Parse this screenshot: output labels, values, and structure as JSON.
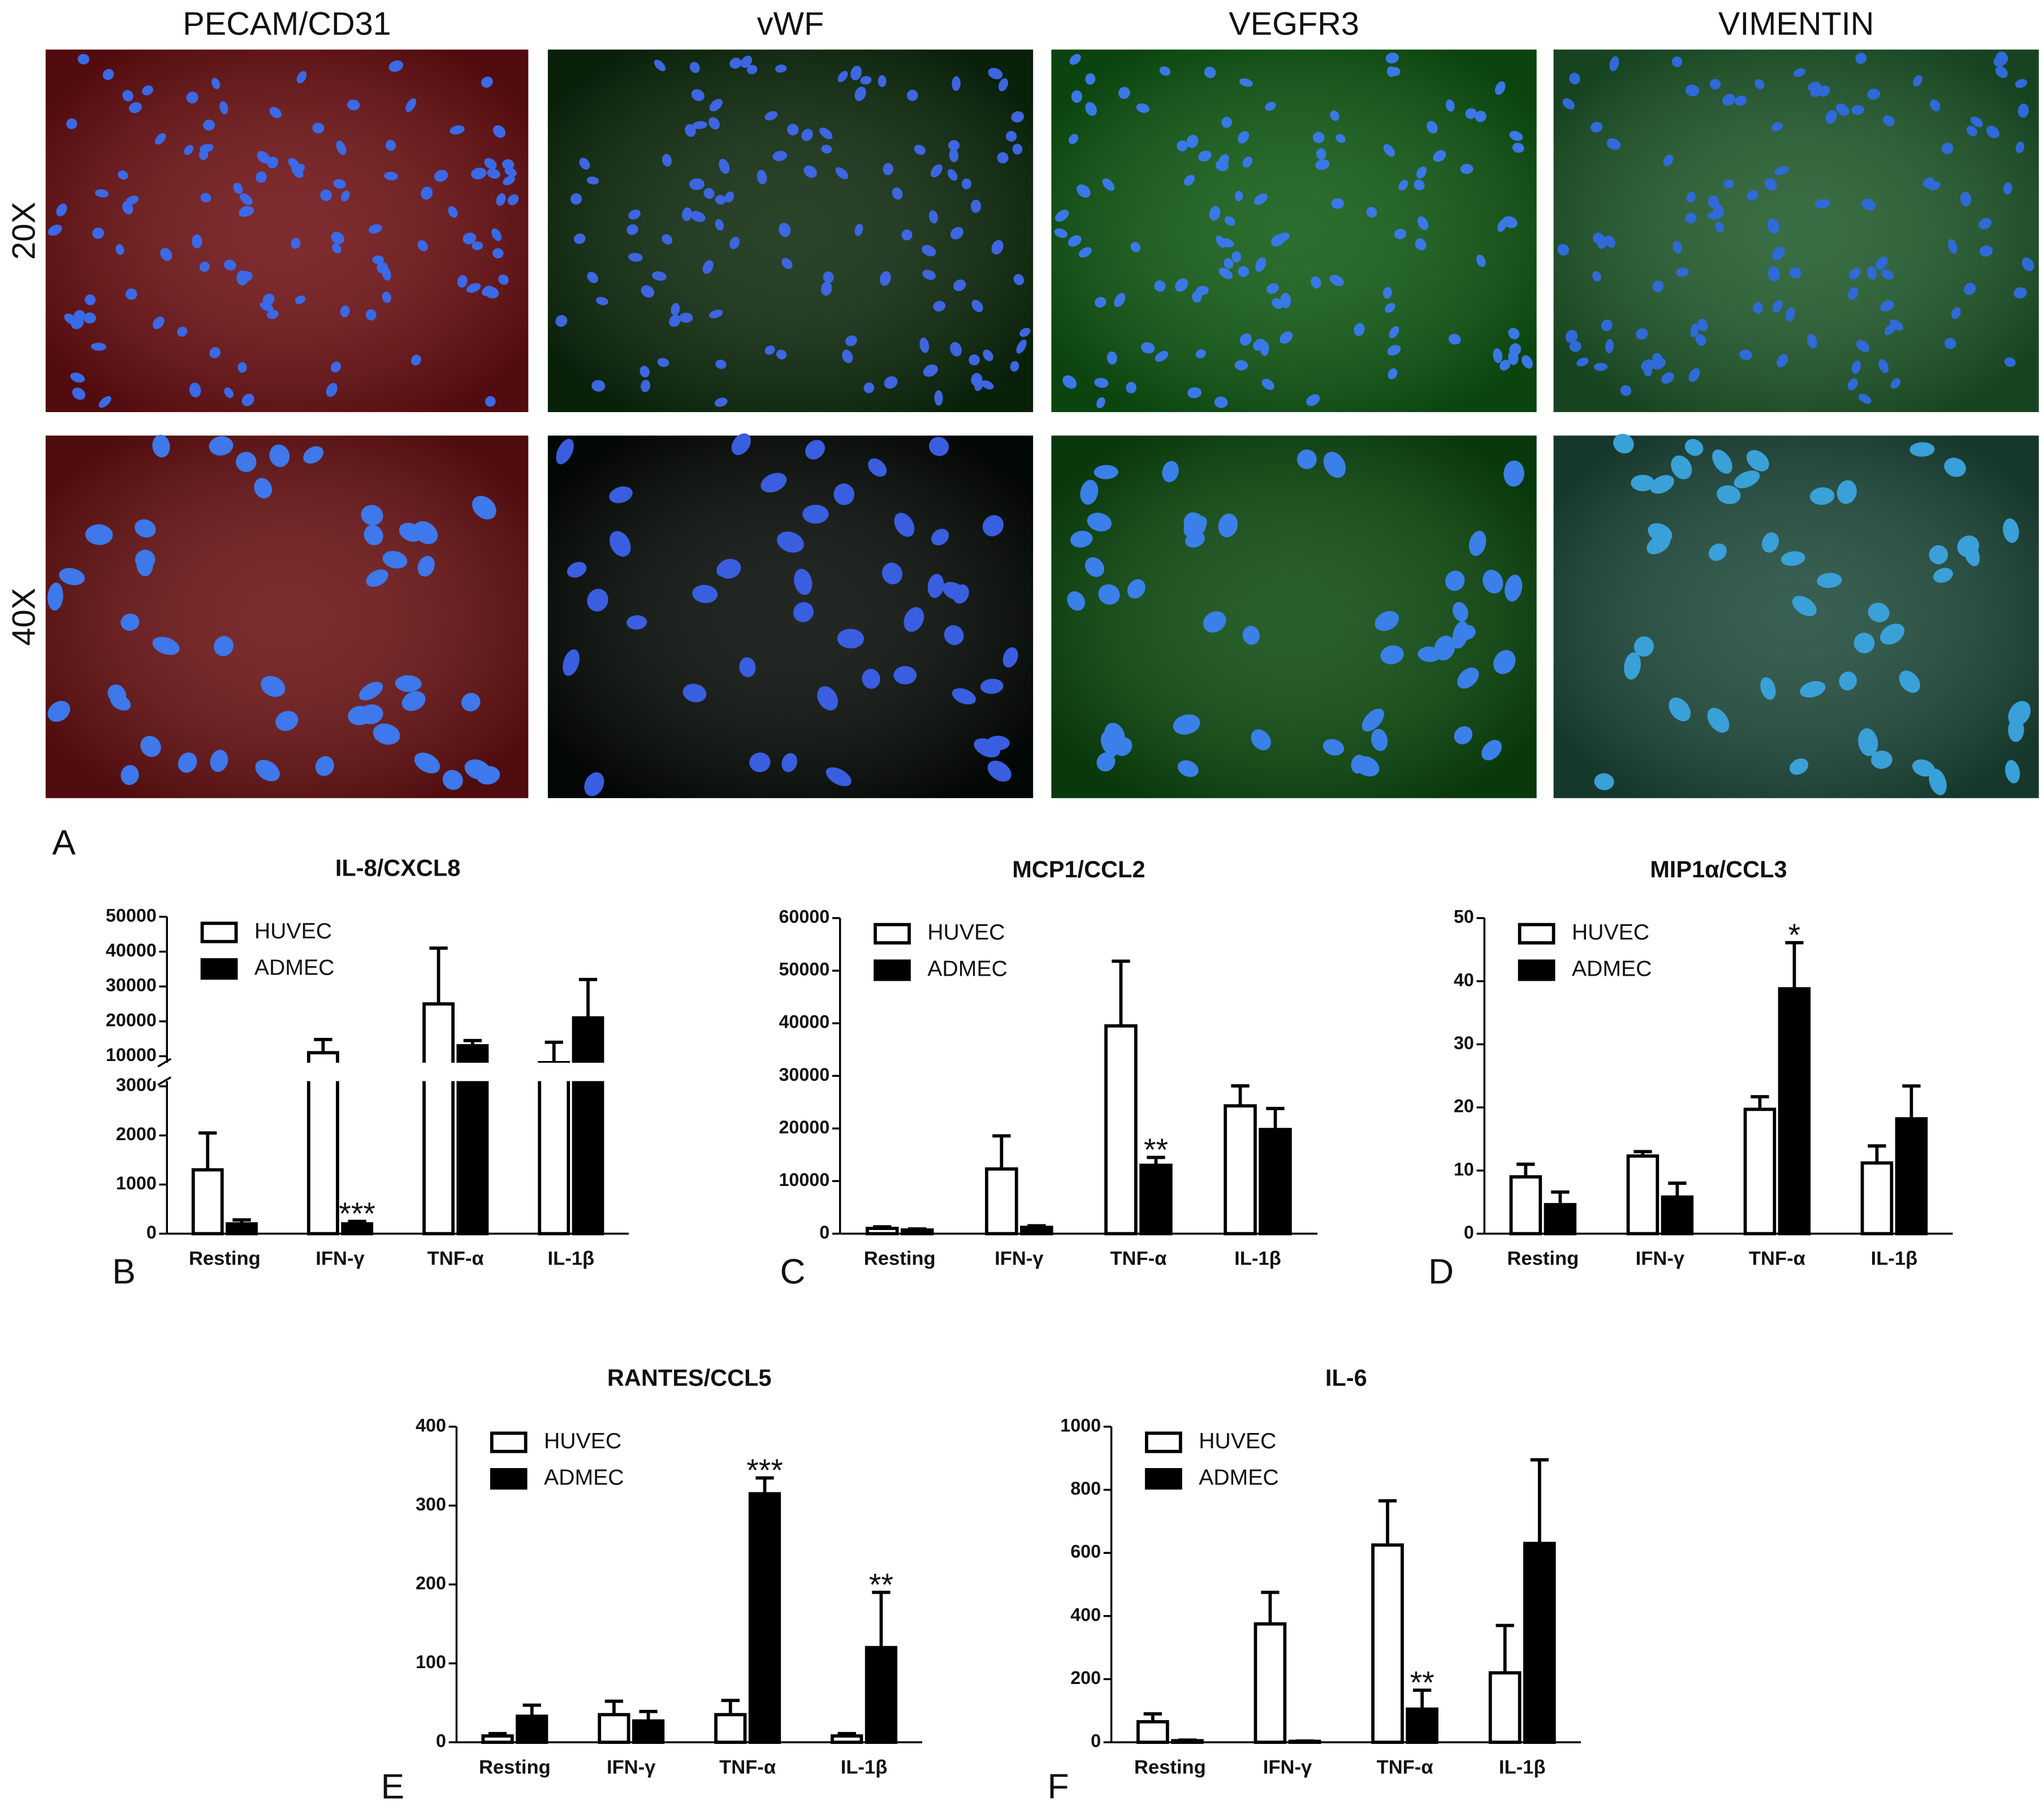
{
  "figure": {
    "panel": "A",
    "columns": [
      "PECAM/CD31",
      "vWF",
      "VEGFR3",
      "VIMENTIN"
    ],
    "rows": [
      "20X",
      "40X"
    ]
  },
  "chart_data": [
    {
      "type": "bar",
      "title": "IL-8/CXCL8",
      "panel": "B",
      "categories": [
        "Resting",
        "IFN-γ",
        "TNF-α",
        "IL-1β"
      ],
      "series": [
        {
          "name": "HUVEC",
          "color": "#ffffff",
          "values": [
            1300,
            11000,
            25000,
            8500
          ],
          "errors": [
            750,
            3800,
            16000,
            5500
          ],
          "significance": [
            null,
            null,
            null,
            null
          ]
        },
        {
          "name": "ADMEC",
          "color": "#000000",
          "values": [
            200,
            200,
            13000,
            21000
          ],
          "errors": [
            80,
            50,
            1500,
            11000
          ],
          "significance": [
            null,
            "***",
            null,
            null
          ]
        }
      ],
      "ylim": [
        0,
        50000
      ],
      "ybreak": [
        3000,
        10000
      ],
      "yticks": [
        0,
        1000,
        2000,
        3000,
        10000,
        20000,
        30000,
        40000,
        50000
      ],
      "legend": "upper left"
    },
    {
      "type": "bar",
      "title": "MCP1/CCL2",
      "panel": "C",
      "categories": [
        "Resting",
        "IFN-γ",
        "TNF-α",
        "IL-1β"
      ],
      "series": [
        {
          "name": "HUVEC",
          "color": "#ffffff",
          "values": [
            1000,
            12300,
            39500,
            24300
          ],
          "errors": [
            300,
            6300,
            12300,
            3800
          ],
          "significance": [
            null,
            null,
            null,
            null
          ]
        },
        {
          "name": "ADMEC",
          "color": "#000000",
          "values": [
            700,
            1200,
            13000,
            19800
          ],
          "errors": [
            200,
            300,
            1500,
            4000
          ],
          "significance": [
            null,
            null,
            "**",
            null
          ]
        }
      ],
      "ylim": [
        0,
        60000
      ],
      "yticks": [
        0,
        10000,
        20000,
        30000,
        40000,
        50000,
        60000
      ],
      "legend": "upper left"
    },
    {
      "type": "bar",
      "title": "MIP1α/CCL3",
      "panel": "D",
      "categories": [
        "Resting",
        "IFN-γ",
        "TNF-α",
        "IL-1β"
      ],
      "series": [
        {
          "name": "HUVEC",
          "color": "#ffffff",
          "values": [
            9,
            12.3,
            19.7,
            11.2
          ],
          "errors": [
            2,
            0.7,
            2,
            2.7
          ],
          "significance": [
            null,
            null,
            null,
            null
          ]
        },
        {
          "name": "ADMEC",
          "color": "#000000",
          "values": [
            4.6,
            5.8,
            38.8,
            18.2
          ],
          "errors": [
            2,
            2.2,
            7.3,
            5.2
          ],
          "significance": [
            null,
            null,
            "*",
            null
          ]
        }
      ],
      "ylim": [
        0,
        50
      ],
      "yticks": [
        0,
        10,
        20,
        30,
        40,
        50
      ],
      "legend": "upper left"
    },
    {
      "type": "bar",
      "title": "RANTES/CCL5",
      "panel": "E",
      "categories": [
        "Resting",
        "IFN-γ",
        "TNF-α",
        "IL-1β"
      ],
      "series": [
        {
          "name": "HUVEC",
          "color": "#ffffff",
          "values": [
            8,
            35,
            35,
            8
          ],
          "errors": [
            3,
            17,
            18,
            3
          ],
          "significance": [
            null,
            null,
            null,
            null
          ]
        },
        {
          "name": "ADMEC",
          "color": "#000000",
          "values": [
            33,
            27,
            315,
            120
          ],
          "errors": [
            14,
            12,
            20,
            70
          ],
          "significance": [
            null,
            null,
            "***",
            "**"
          ]
        }
      ],
      "ylim": [
        0,
        400
      ],
      "yticks": [
        0,
        100,
        200,
        300,
        400
      ],
      "legend": "upper left"
    },
    {
      "type": "bar",
      "title": "IL-6",
      "panel": "F",
      "categories": [
        "Resting",
        "IFN-γ",
        "TNF-α",
        "IL-1β"
      ],
      "series": [
        {
          "name": "HUVEC",
          "color": "#ffffff",
          "values": [
            65,
            375,
            625,
            220
          ],
          "errors": [
            25,
            100,
            140,
            150
          ],
          "significance": [
            null,
            null,
            null,
            null
          ]
        },
        {
          "name": "ADMEC",
          "color": "#000000",
          "values": [
            5,
            3,
            105,
            630
          ],
          "errors": [
            2,
            1,
            60,
            265
          ],
          "significance": [
            null,
            null,
            "**",
            null
          ]
        }
      ],
      "ylim": [
        0,
        1000
      ],
      "yticks": [
        0,
        200,
        400,
        600,
        800,
        1000
      ],
      "legend": "upper left"
    }
  ]
}
